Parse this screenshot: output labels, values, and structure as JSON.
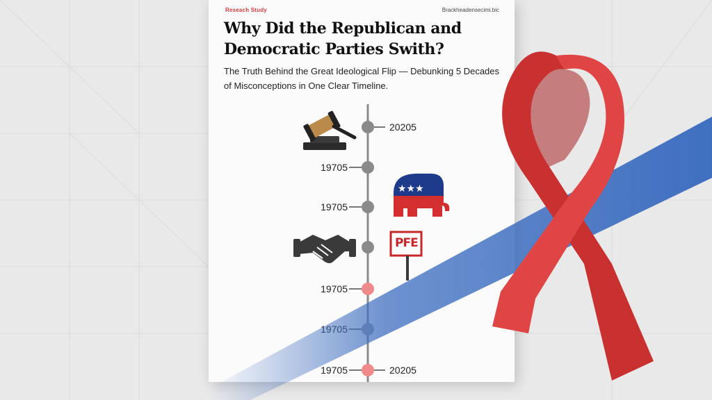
{
  "kicker": "Reseach Study",
  "corner_label": "Brackheadensecimi.bic",
  "title": "Why Did the Republican and Democratic Parties Swith?",
  "subtitle": "The Truth Behind the Great Ideological Flip — Debunking 5 Decades of Misconceptions in One Clear Timeline.",
  "timeline": {
    "right_top": "20205",
    "left_1": "19705",
    "left_2": "19705",
    "left_3": "19705",
    "left_4": "19705",
    "left_5": "19705",
    "right_bottom": "20205"
  },
  "sign_text": "PFE",
  "icons": [
    "gavel-icon",
    "elephant-icon",
    "handshake-icon",
    "sign-icon",
    "awareness-ribbon"
  ],
  "colors": {
    "ribbon_red": "#d83a3a",
    "ribbon_blue": "#3f6fc0",
    "node_gray": "#8a8a8a",
    "node_pink": "#f08a8a"
  }
}
